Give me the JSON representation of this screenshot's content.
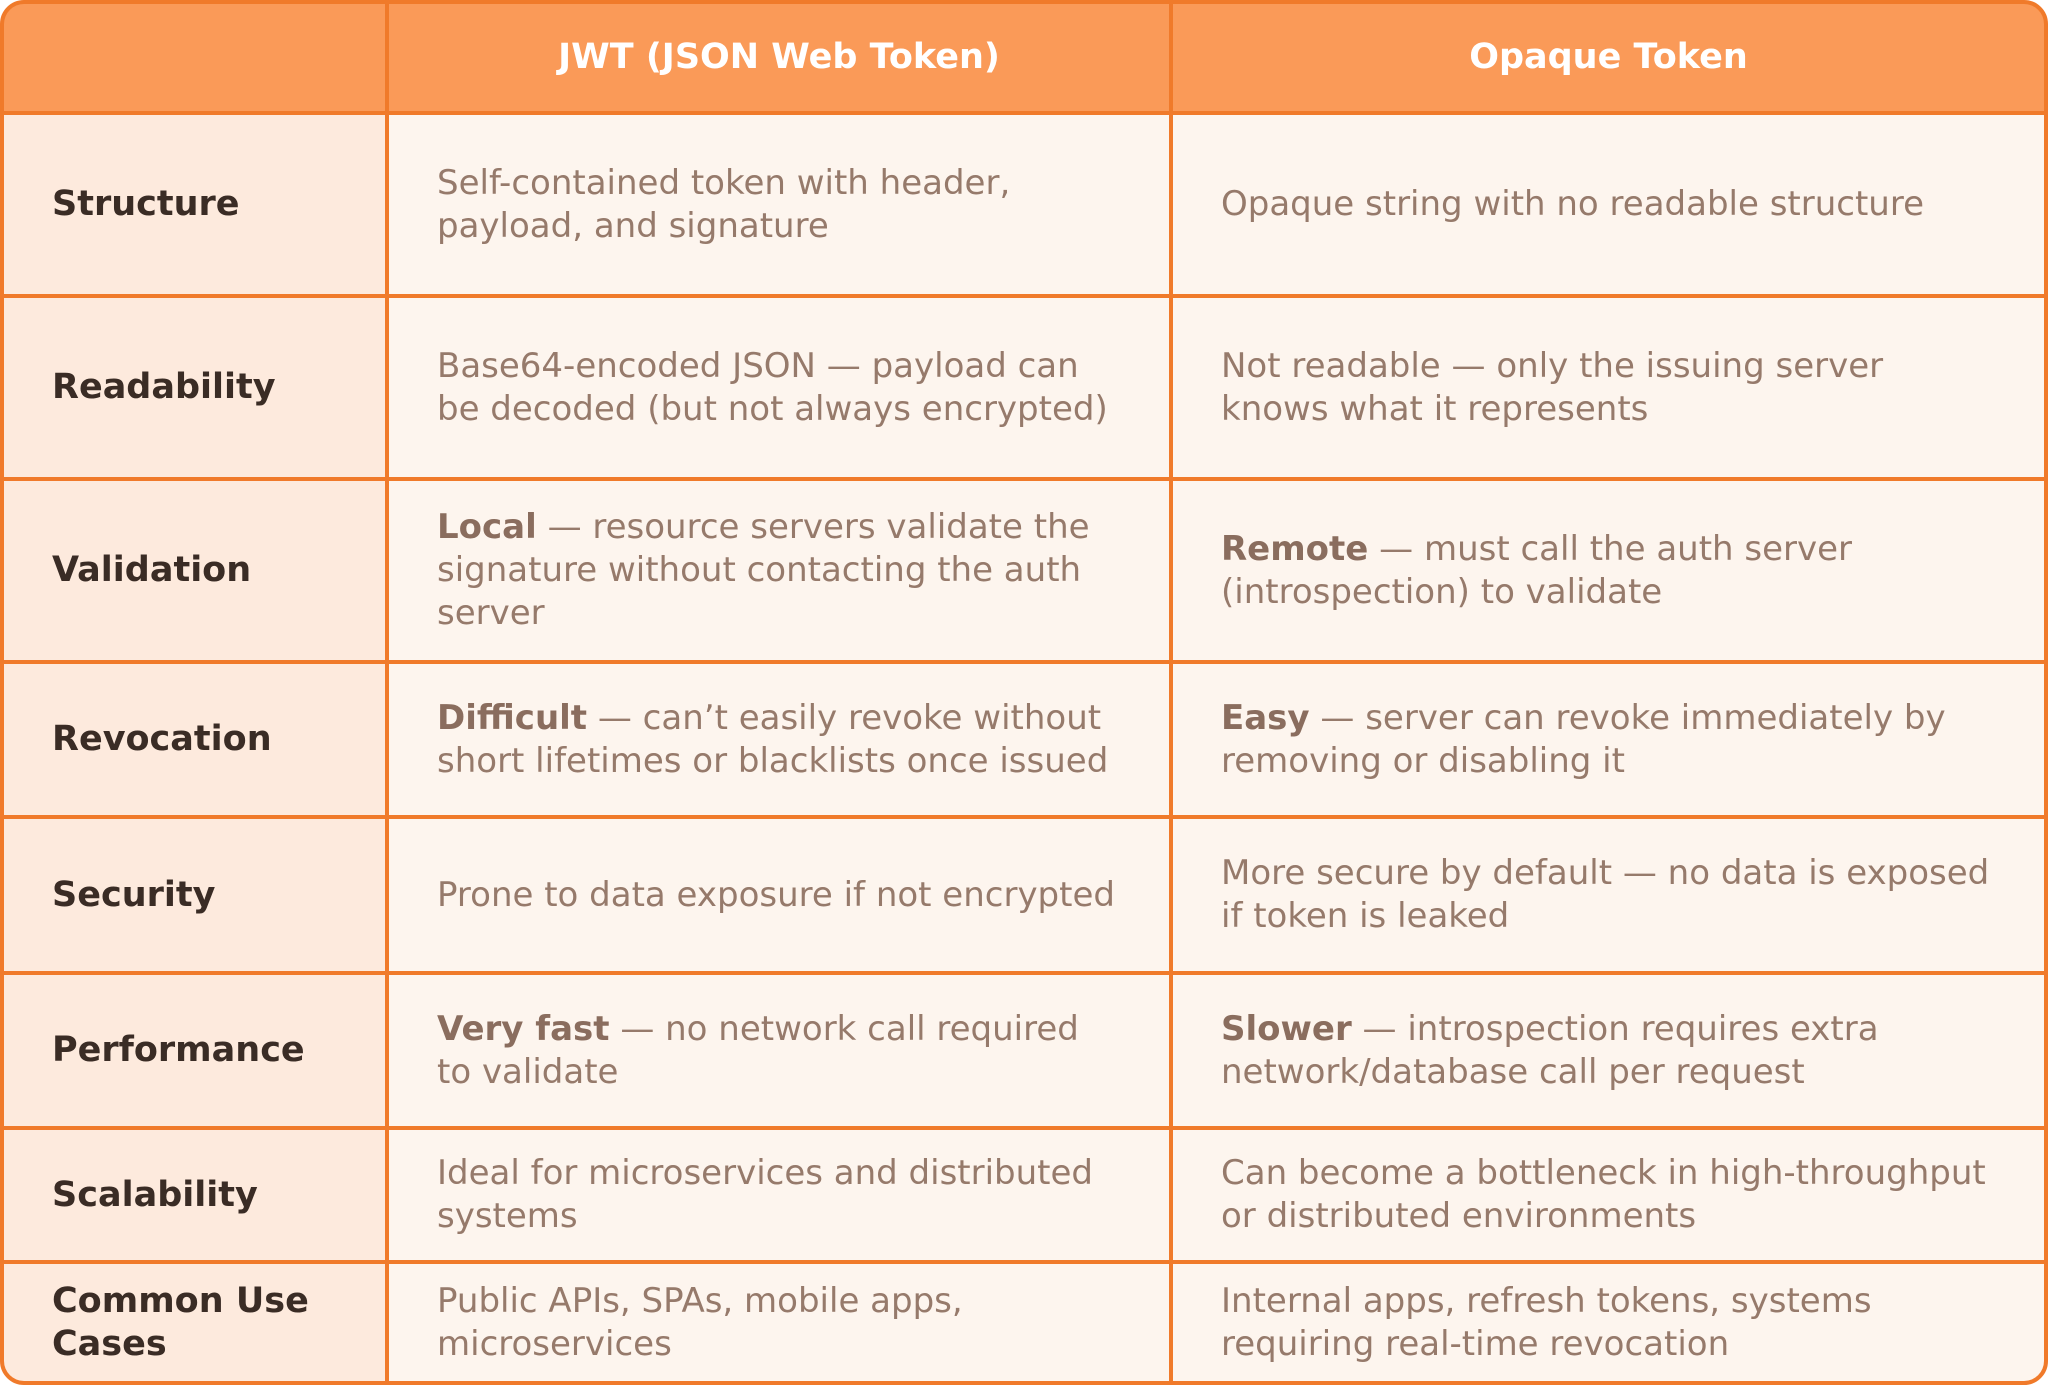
{
  "table": {
    "header": [
      "JWT (JSON Web Token)",
      "Opaque Token"
    ],
    "rows": [
      [
        "Structure",
        "Self-contained token with header, payload, and signature",
        "Opaque string with no readable structure"
      ],
      [
        "Readability",
        "Base64-encoded JSON — payload can be decoded (but not always encrypted)",
        "Not readable — only the issuing server knows what it represents"
      ],
      [
        "Validation",
        {
          "bold": "Local",
          "text": " — resource servers validate the signature without contacting the auth server"
        },
        {
          "bold": "Remote",
          "text": " — must call the auth server (introspection) to validate"
        }
      ],
      [
        "Revocation",
        {
          "bold": "Difficult",
          "text": " —  can’t easily revoke without short lifetimes or blacklists once issued"
        },
        {
          "bold": "Easy",
          "text": " — server can revoke immediately by removing or disabling it"
        }
      ],
      [
        "Security",
        "Prone to data exposure if not encrypted",
        "More secure by default — no data is exposed if token is leaked"
      ],
      [
        "Performance",
        {
          "bold": "Very fast",
          "text": " — no network call required to validate"
        },
        {
          "bold": "Slower",
          "text": " — introspection requires extra network/database call per request"
        }
      ],
      [
        "Scalability",
        "Ideal for microservices and distributed systems",
        "Can become a bottleneck in high-throughput or distributed environments"
      ],
      [
        "Common Use Cases",
        "Public APIs, SPAs, mobile apps, microservices",
        "Internal apps, refresh tokens, systems requiring real-time revocation"
      ]
    ]
  }
}
